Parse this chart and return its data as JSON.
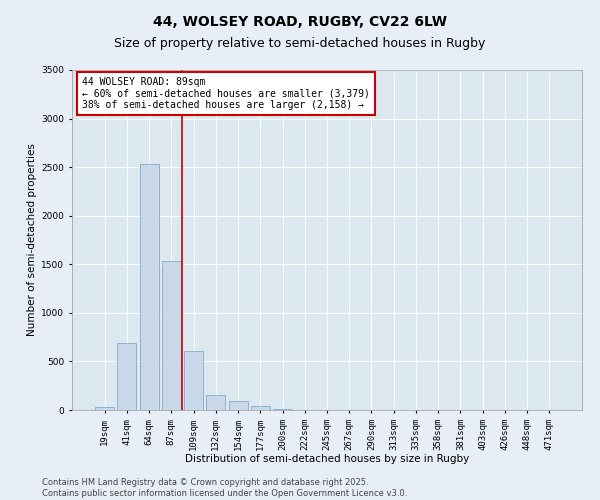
{
  "title": "44, WOLSEY ROAD, RUGBY, CV22 6LW",
  "subtitle": "Size of property relative to semi-detached houses in Rugby",
  "xlabel": "Distribution of semi-detached houses by size in Rugby",
  "ylabel": "Number of semi-detached properties",
  "categories": [
    "19sqm",
    "41sqm",
    "64sqm",
    "87sqm",
    "109sqm",
    "132sqm",
    "154sqm",
    "177sqm",
    "200sqm",
    "222sqm",
    "245sqm",
    "267sqm",
    "290sqm",
    "313sqm",
    "335sqm",
    "358sqm",
    "381sqm",
    "403sqm",
    "426sqm",
    "448sqm",
    "471sqm"
  ],
  "values": [
    30,
    690,
    2530,
    1530,
    610,
    150,
    90,
    40,
    10,
    5,
    3,
    2,
    1,
    0,
    0,
    0,
    0,
    0,
    0,
    0,
    0
  ],
  "bar_color": "#c8d8e8",
  "bar_edge_color": "#7a9cbf",
  "vline_color": "#cc0000",
  "vline_index": 3.5,
  "annotation_title": "44 WOLSEY ROAD: 89sqm",
  "annotation_line1": "← 60% of semi-detached houses are smaller (3,379)",
  "annotation_line2": "38% of semi-detached houses are larger (2,158) →",
  "annotation_color": "#cc0000",
  "ylim": [
    0,
    3500
  ],
  "yticks": [
    0,
    500,
    1000,
    1500,
    2000,
    2500,
    3000,
    3500
  ],
  "background_color": "#e8eef8",
  "plot_bg_color": "#dce8f0",
  "footer_line1": "Contains HM Land Registry data © Crown copyright and database right 2025.",
  "footer_line2": "Contains public sector information licensed under the Open Government Licence v3.0.",
  "title_fontsize": 10,
  "subtitle_fontsize": 9,
  "axis_label_fontsize": 7.5,
  "tick_fontsize": 6.5,
  "annotation_fontsize": 7,
  "footer_fontsize": 6
}
